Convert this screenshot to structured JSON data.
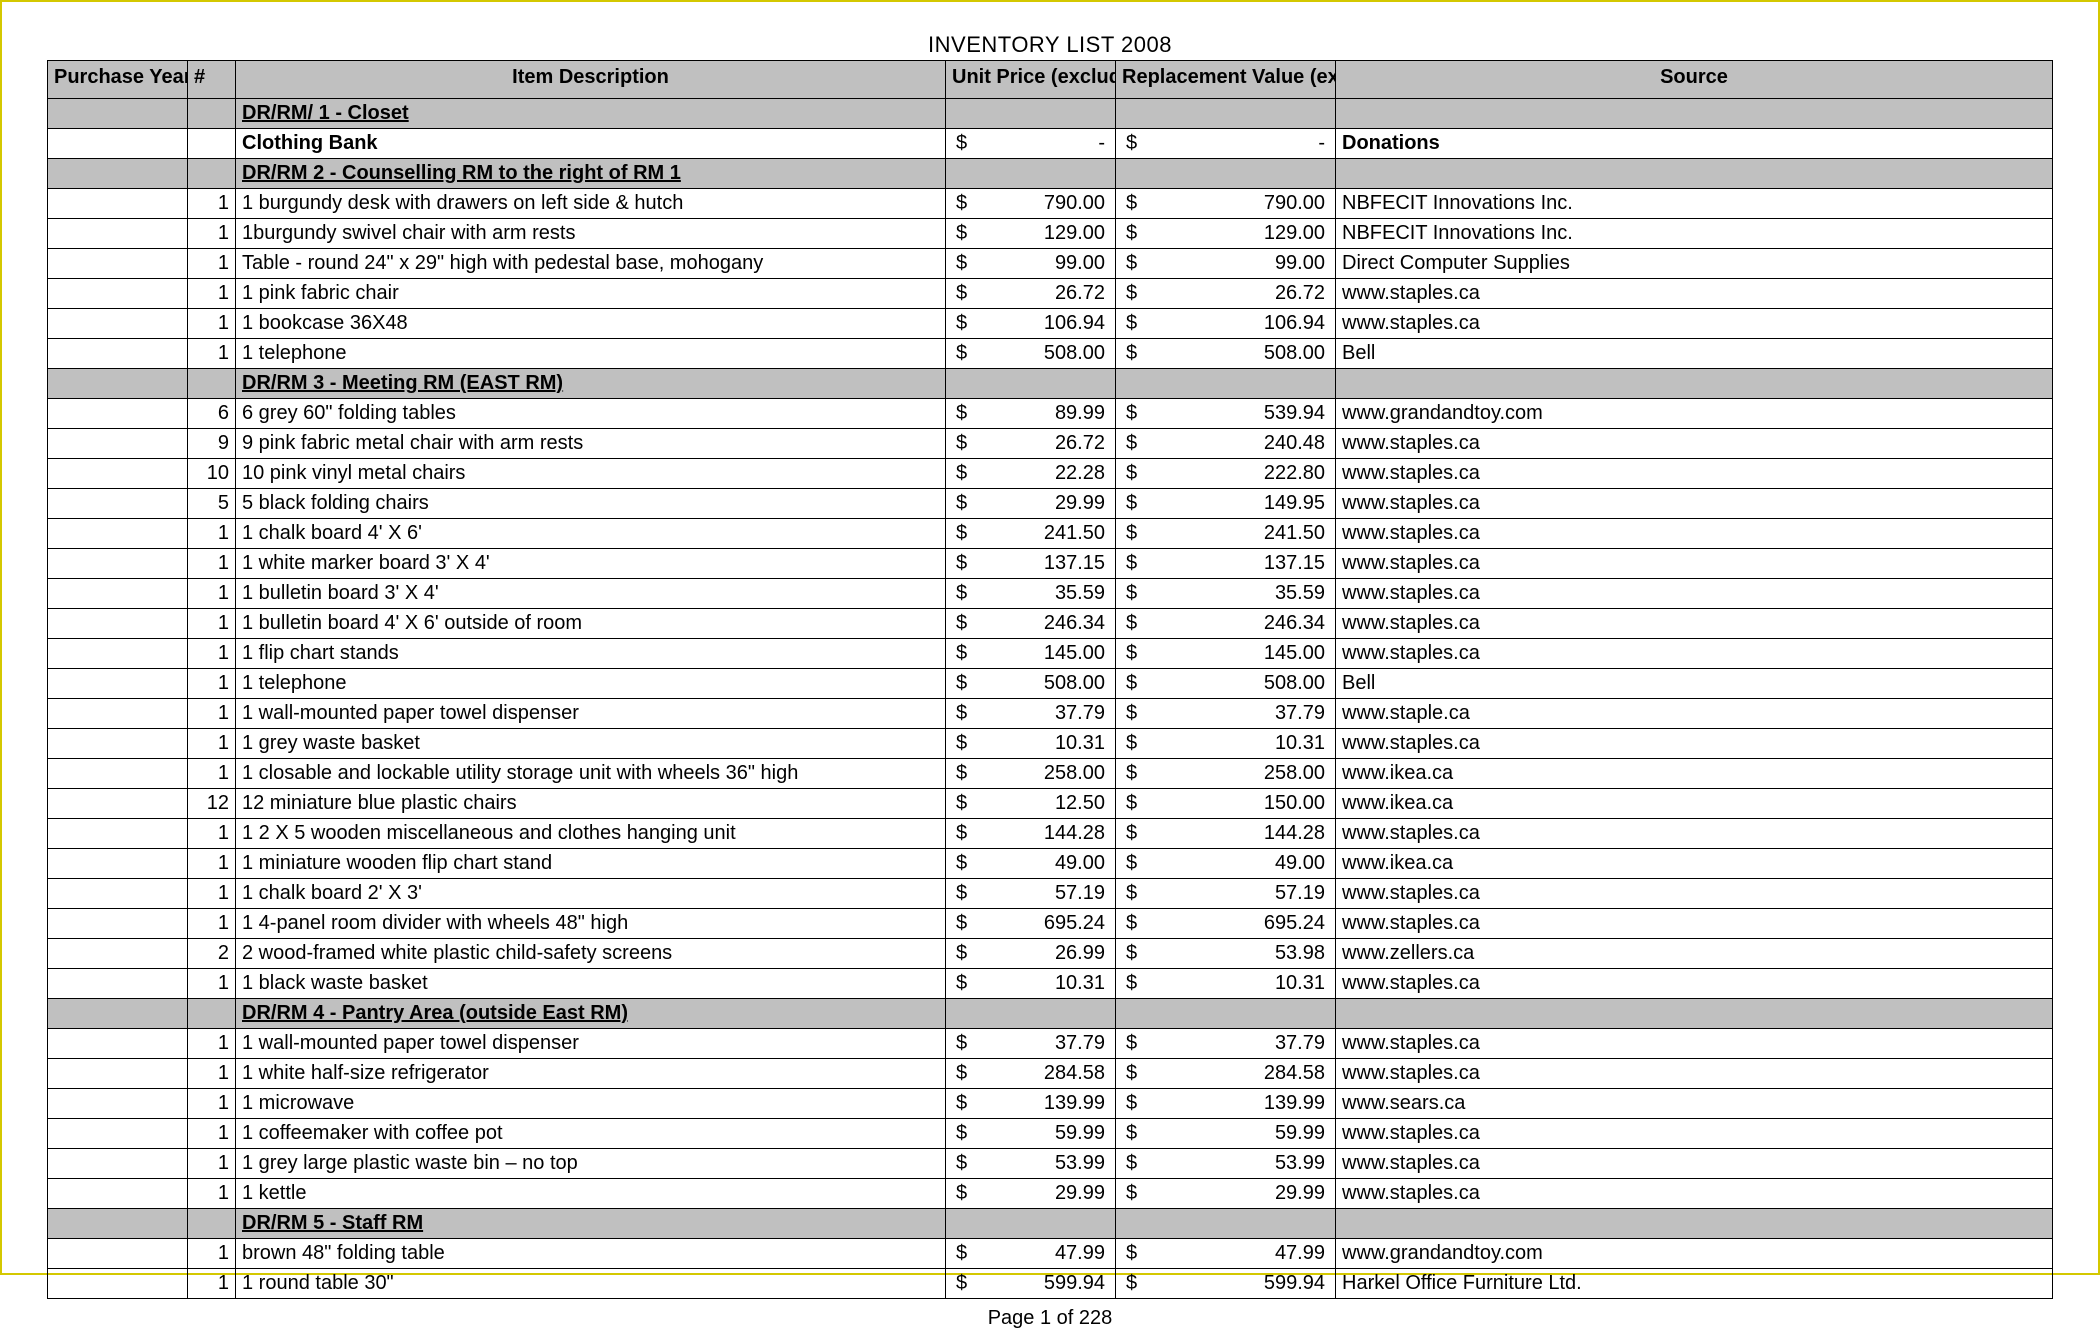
{
  "title": "INVENTORY LIST 2008",
  "footer": "Page 1 of 228",
  "colors": {
    "page_border": "#d4c800",
    "header_bg": "#c0c0c0",
    "grid": "#000000",
    "background": "#ffffff"
  },
  "columns": {
    "year": "Purchase Year",
    "hash": "#",
    "desc": "Item Description",
    "unit": "Unit Price (excluding taxes)",
    "repl": "Replacement Value (excluding taxes)",
    "source": "Source"
  },
  "currency_symbol": "$",
  "dash": "-",
  "rows": [
    {
      "type": "section",
      "desc": "DR/RM/ 1 - Closet"
    },
    {
      "type": "item",
      "hash": "",
      "desc": "Clothing Bank",
      "desc_bold": true,
      "unit": "-",
      "repl": "-",
      "source": "Donations",
      "source_bold": true
    },
    {
      "type": "section",
      "desc": "DR/RM 2 - Counselling RM to the right of RM 1"
    },
    {
      "type": "item",
      "hash": "1",
      "desc": "1 burgundy desk with drawers on left side & hutch",
      "unit": "790.00",
      "repl": "790.00",
      "source": "NBFECIT Innovations Inc."
    },
    {
      "type": "item",
      "hash": "1",
      "desc": "1burgundy swivel chair with arm rests",
      "unit": "129.00",
      "repl": "129.00",
      "source": "NBFECIT Innovations Inc."
    },
    {
      "type": "item",
      "hash": "1",
      "desc": "Table - round 24\" x 29\" high with pedestal base, mohogany",
      "unit": "99.00",
      "repl": "99.00",
      "source": "Direct Computer Supplies"
    },
    {
      "type": "item",
      "hash": "1",
      "desc": "1 pink fabric chair",
      "unit": "26.72",
      "repl": "26.72",
      "source": "www.staples.ca"
    },
    {
      "type": "item",
      "hash": "1",
      "desc": "1 bookcase 36X48",
      "unit": "106.94",
      "repl": "106.94",
      "source": "www.staples.ca"
    },
    {
      "type": "item",
      "hash": "1",
      "desc": "1 telephone",
      "unit": "508.00",
      "repl": "508.00",
      "source": "Bell"
    },
    {
      "type": "section",
      "desc": "DR/RM 3 - Meeting RM (EAST RM)"
    },
    {
      "type": "item",
      "hash": "6",
      "desc": "6 grey 60\" folding tables",
      "unit": "89.99",
      "repl": "539.94",
      "source": "www.grandandtoy.com"
    },
    {
      "type": "item",
      "hash": "9",
      "desc": "9 pink fabric metal chair with arm rests",
      "unit": "26.72",
      "repl": "240.48",
      "source": "www.staples.ca"
    },
    {
      "type": "item",
      "hash": "10",
      "desc": "10 pink vinyl metal chairs",
      "unit": "22.28",
      "repl": "222.80",
      "source": "www.staples.ca"
    },
    {
      "type": "item",
      "hash": "5",
      "desc": "5 black folding chairs",
      "unit": "29.99",
      "repl": "149.95",
      "source": "www.staples.ca"
    },
    {
      "type": "item",
      "hash": "1",
      "desc": "1 chalk board 4' X 6'",
      "unit": "241.50",
      "repl": "241.50",
      "source": "www.staples.ca"
    },
    {
      "type": "item",
      "hash": "1",
      "desc": "1 white marker board 3' X 4'",
      "unit": "137.15",
      "repl": "137.15",
      "source": "www.staples.ca"
    },
    {
      "type": "item",
      "hash": "1",
      "desc": "1 bulletin board 3' X 4'",
      "unit": "35.59",
      "repl": "35.59",
      "source": "www.staples.ca"
    },
    {
      "type": "item",
      "hash": "1",
      "desc": "1 bulletin board 4' X 6' outside of room",
      "unit": "246.34",
      "repl": "246.34",
      "source": "www.staples.ca"
    },
    {
      "type": "item",
      "hash": "1",
      "desc": "1 flip chart stands",
      "unit": "145.00",
      "repl": "145.00",
      "source": "www.staples.ca"
    },
    {
      "type": "item",
      "hash": "1",
      "desc": "1 telephone",
      "unit": "508.00",
      "repl": "508.00",
      "source": "Bell"
    },
    {
      "type": "item",
      "hash": "1",
      "desc": "1 wall-mounted paper towel dispenser",
      "unit": "37.79",
      "repl": "37.79",
      "source": "www.staple.ca"
    },
    {
      "type": "item",
      "hash": "1",
      "desc": "1 grey waste basket",
      "unit": "10.31",
      "repl": "10.31",
      "source": "www.staples.ca"
    },
    {
      "type": "item",
      "hash": "1",
      "desc": "1 closable and lockable utility storage unit with wheels 36\" high",
      "unit": "258.00",
      "repl": "258.00",
      "source": "www.ikea.ca"
    },
    {
      "type": "item",
      "hash": "12",
      "desc": "12 miniature blue plastic chairs",
      "unit": "12.50",
      "repl": "150.00",
      "source": "www.ikea.ca"
    },
    {
      "type": "item",
      "hash": "1",
      "desc": "1 2 X 5 wooden miscellaneous and clothes hanging unit",
      "unit": "144.28",
      "repl": "144.28",
      "source": "www.staples.ca"
    },
    {
      "type": "item",
      "hash": "1",
      "desc": "1 miniature wooden flip chart stand",
      "unit": "49.00",
      "repl": "49.00",
      "source": "www.ikea.ca"
    },
    {
      "type": "item",
      "hash": "1",
      "desc": "1 chalk board 2' X 3'",
      "unit": "57.19",
      "repl": "57.19",
      "source": "www.staples.ca"
    },
    {
      "type": "item",
      "hash": "1",
      "desc": "1 4-panel room divider with wheels 48\" high",
      "unit": "695.24",
      "repl": "695.24",
      "source": "www.staples.ca"
    },
    {
      "type": "item",
      "hash": "2",
      "desc": "2 wood-framed white plastic child-safety screens",
      "unit": "26.99",
      "repl": "53.98",
      "source": "www.zellers.ca"
    },
    {
      "type": "item",
      "hash": "1",
      "desc": "1 black waste basket",
      "unit": "10.31",
      "repl": "10.31",
      "source": "www.staples.ca"
    },
    {
      "type": "section",
      "desc": "DR/RM 4 - Pantry Area (outside East RM)"
    },
    {
      "type": "item",
      "hash": "1",
      "desc": "1 wall-mounted paper towel dispenser",
      "unit": "37.79",
      "repl": "37.79",
      "source": "www.staples.ca"
    },
    {
      "type": "item",
      "hash": "1",
      "desc": "1 white half-size refrigerator",
      "unit": "284.58",
      "repl": "284.58",
      "source": "www.staples.ca"
    },
    {
      "type": "item",
      "hash": "1",
      "desc": "1 microwave",
      "unit": "139.99",
      "repl": "139.99",
      "source": "www.sears.ca"
    },
    {
      "type": "item",
      "hash": "1",
      "desc": "1 coffeemaker with coffee pot",
      "unit": "59.99",
      "repl": "59.99",
      "source": "www.staples.ca"
    },
    {
      "type": "item",
      "hash": "1",
      "desc": "1 grey large plastic waste bin – no top",
      "unit": "53.99",
      "repl": "53.99",
      "source": "www.staples.ca"
    },
    {
      "type": "item",
      "hash": "1",
      "desc": "1 kettle",
      "unit": "29.99",
      "repl": "29.99",
      "source": "www.staples.ca"
    },
    {
      "type": "section",
      "desc": "DR/RM 5 - Staff RM"
    },
    {
      "type": "item",
      "hash": "1",
      "desc": "brown 48\" folding table",
      "unit": "47.99",
      "repl": "47.99",
      "source": "www.grandandtoy.com"
    },
    {
      "type": "item",
      "hash": "1",
      "desc": "1 round table 30\"",
      "unit": "599.94",
      "repl": "599.94",
      "source": "Harkel Office Furniture Ltd."
    }
  ]
}
